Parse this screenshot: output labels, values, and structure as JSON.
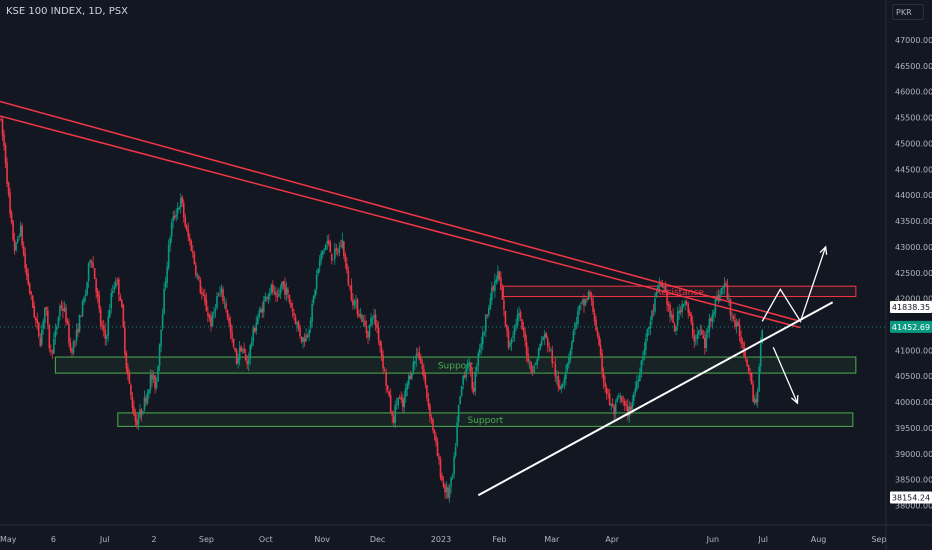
{
  "header": {
    "title": "KSE 100 INDEX, 1D, PSX",
    "currency": "PKR"
  },
  "chart_data": {
    "type": "candlestick",
    "price_axis": {
      "ticks": [
        47000,
        46500,
        46000,
        45500,
        45000,
        44500,
        44000,
        43500,
        43000,
        42500,
        42000,
        41500,
        41000,
        40500,
        40000,
        39500,
        39000,
        38500,
        38000
      ],
      "tick_labels": [
        "47000.00",
        "46500.00",
        "46000.00",
        "45500.00",
        "45000.00",
        "44500.00",
        "44000.00",
        "43500.00",
        "43000.00",
        "42500.00",
        "42000.00",
        "41500.00",
        "41000.00",
        "40500.00",
        "40000.00",
        "39500.00",
        "39000.00",
        "38500.00",
        "38000.00"
      ],
      "range": [
        37850,
        47300
      ]
    },
    "time_axis": {
      "labels": [
        "May",
        "6",
        "Jul",
        "2",
        "Sep",
        "Oct",
        "Nov",
        "Dec",
        "2023",
        "Feb",
        "Mar",
        "Apr",
        "Jun",
        "Jul",
        "Aug",
        "Sep"
      ],
      "label_day": [
        0,
        53,
        104,
        153,
        205,
        264,
        320,
        375,
        438,
        496,
        548,
        608,
        708,
        758,
        813,
        873
      ]
    },
    "price_labels": [
      {
        "value": 41838.35,
        "label": "41838.35",
        "color": "#ffffff",
        "bg": "#ffffff",
        "fg": "#131722"
      },
      {
        "value": 41452.69,
        "label": "41452.69",
        "color": "#089981",
        "bg": "#089981",
        "fg": "#ffffff"
      },
      {
        "value": 38154.24,
        "label": "38154.24",
        "color": "#ffffff",
        "bg": "#ffffff",
        "fg": "#131722"
      }
    ],
    "current_price": 41452.69,
    "zones": [
      {
        "label": "Resistance",
        "day_start": 500,
        "day_end": 850,
        "price_top": 42240,
        "price_bottom": 42040,
        "color": "#f23645"
      },
      {
        "label": "Support",
        "day_start": 55,
        "day_end": 850,
        "price_top": 40870,
        "price_bottom": 40560,
        "color": "#4caf50"
      },
      {
        "label": "Support",
        "day_start": 117,
        "day_end": 847,
        "price_top": 39790,
        "price_bottom": 39530,
        "color": "#4caf50"
      }
    ],
    "trendlines": [
      {
        "color": "#f23645",
        "points": [
          [
            0,
            45810
          ],
          [
            795,
            41560
          ]
        ]
      },
      {
        "color": "#f23645",
        "points": [
          [
            0,
            45530
          ],
          [
            795,
            41440
          ]
        ]
      },
      {
        "color": "#ffffff",
        "points": [
          [
            475,
            38200
          ],
          [
            827,
            41930
          ]
        ]
      }
    ],
    "projections": [
      {
        "color": "#ffffff",
        "points": [
          [
            757,
            41560
          ],
          [
            775,
            42180
          ],
          [
            795,
            41560
          ],
          [
            820,
            43000
          ]
        ]
      },
      {
        "color": "#ffffff",
        "points": [
          [
            768,
            41060
          ],
          [
            792,
            39980
          ]
        ]
      }
    ],
    "candles_path": [
      [
        0,
        45500
      ],
      [
        5,
        44800
      ],
      [
        10,
        43600
      ],
      [
        15,
        42900
      ],
      [
        20,
        43400
      ],
      [
        25,
        42600
      ],
      [
        30,
        42100
      ],
      [
        35,
        41600
      ],
      [
        40,
        41200
      ],
      [
        45,
        41900
      ],
      [
        50,
        40900
      ],
      [
        55,
        41300
      ],
      [
        60,
        41900
      ],
      [
        65,
        41700
      ],
      [
        70,
        41000
      ],
      [
        75,
        41200
      ],
      [
        80,
        41700
      ],
      [
        85,
        42100
      ],
      [
        90,
        42900
      ],
      [
        95,
        42300
      ],
      [
        100,
        41500
      ],
      [
        105,
        41200
      ],
      [
        110,
        42000
      ],
      [
        115,
        42400
      ],
      [
        120,
        42000
      ],
      [
        125,
        40800
      ],
      [
        130,
        40100
      ],
      [
        135,
        39600
      ],
      [
        140,
        39800
      ],
      [
        145,
        40100
      ],
      [
        150,
        40500
      ],
      [
        155,
        40300
      ],
      [
        160,
        41500
      ],
      [
        165,
        42500
      ],
      [
        170,
        43400
      ],
      [
        175,
        43700
      ],
      [
        180,
        43900
      ],
      [
        185,
        43300
      ],
      [
        190,
        43000
      ],
      [
        195,
        42500
      ],
      [
        200,
        42100
      ],
      [
        205,
        41800
      ],
      [
        210,
        41500
      ],
      [
        215,
        42000
      ],
      [
        220,
        42100
      ],
      [
        225,
        41800
      ],
      [
        230,
        41200
      ],
      [
        235,
        40800
      ],
      [
        240,
        41100
      ],
      [
        245,
        40700
      ],
      [
        250,
        41200
      ],
      [
        255,
        41600
      ],
      [
        260,
        41800
      ],
      [
        265,
        42100
      ],
      [
        270,
        42200
      ],
      [
        275,
        41900
      ],
      [
        280,
        42300
      ],
      [
        285,
        42100
      ],
      [
        290,
        41800
      ],
      [
        295,
        41500
      ],
      [
        300,
        41200
      ],
      [
        305,
        41300
      ],
      [
        310,
        41800
      ],
      [
        315,
        42500
      ],
      [
        320,
        42900
      ],
      [
        325,
        43100
      ],
      [
        330,
        42800
      ],
      [
        335,
        42900
      ],
      [
        340,
        43100
      ],
      [
        345,
        42400
      ],
      [
        350,
        42000
      ],
      [
        355,
        41800
      ],
      [
        360,
        41600
      ],
      [
        365,
        41300
      ],
      [
        370,
        41700
      ],
      [
        375,
        41400
      ],
      [
        380,
        40800
      ],
      [
        385,
        40200
      ],
      [
        390,
        39600
      ],
      [
        395,
        40100
      ],
      [
        400,
        39900
      ],
      [
        405,
        40400
      ],
      [
        410,
        40700
      ],
      [
        415,
        41000
      ],
      [
        420,
        40600
      ],
      [
        425,
        40000
      ],
      [
        430,
        39500
      ],
      [
        435,
        38900
      ],
      [
        440,
        38400
      ],
      [
        445,
        38200
      ],
      [
        450,
        38600
      ],
      [
        455,
        39800
      ],
      [
        460,
        40500
      ],
      [
        465,
        40800
      ],
      [
        470,
        40200
      ],
      [
        475,
        41000
      ],
      [
        480,
        41300
      ],
      [
        485,
        41900
      ],
      [
        490,
        42200
      ],
      [
        495,
        42500
      ],
      [
        500,
        41800
      ],
      [
        505,
        41100
      ],
      [
        510,
        41400
      ],
      [
        515,
        41700
      ],
      [
        520,
        41300
      ],
      [
        525,
        40800
      ],
      [
        530,
        40600
      ],
      [
        535,
        41000
      ],
      [
        540,
        41300
      ],
      [
        545,
        41100
      ],
      [
        550,
        40700
      ],
      [
        555,
        40200
      ],
      [
        560,
        40500
      ],
      [
        565,
        40900
      ],
      [
        570,
        41400
      ],
      [
        575,
        41800
      ],
      [
        580,
        41900
      ],
      [
        585,
        42100
      ],
      [
        590,
        41700
      ],
      [
        595,
        41000
      ],
      [
        600,
        40400
      ],
      [
        605,
        40000
      ],
      [
        610,
        39800
      ],
      [
        615,
        40100
      ],
      [
        620,
        39900
      ],
      [
        625,
        39800
      ],
      [
        630,
        40200
      ],
      [
        635,
        40600
      ],
      [
        640,
        41100
      ],
      [
        645,
        41500
      ],
      [
        650,
        41900
      ],
      [
        655,
        42300
      ],
      [
        660,
        42200
      ],
      [
        665,
        41700
      ],
      [
        670,
        41400
      ],
      [
        675,
        41800
      ],
      [
        680,
        42000
      ],
      [
        685,
        41600
      ],
      [
        690,
        41200
      ],
      [
        695,
        41400
      ],
      [
        700,
        41100
      ],
      [
        705,
        41600
      ],
      [
        710,
        41900
      ],
      [
        715,
        42100
      ],
      [
        720,
        42300
      ],
      [
        725,
        41800
      ],
      [
        730,
        41500
      ],
      [
        735,
        41300
      ],
      [
        740,
        40900
      ],
      [
        745,
        40600
      ],
      [
        748,
        40100
      ],
      [
        751,
        40000
      ],
      [
        754,
        40600
      ],
      [
        757,
        41450
      ]
    ]
  }
}
